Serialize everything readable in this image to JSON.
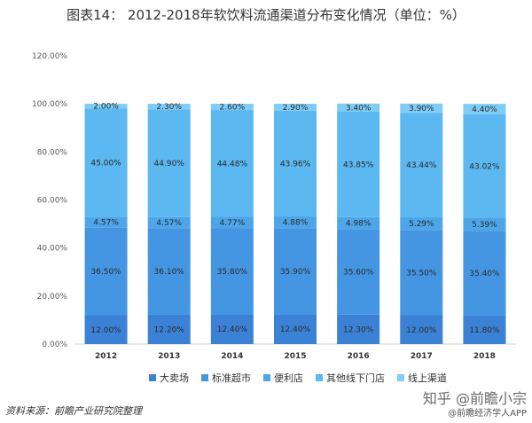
{
  "title": "图表14：  2012-2018年软饮料流通渠道分布变化情况（单位：%）",
  "source": "资料来源：前瞻产业研究院整理",
  "watermark_main": "知乎 @前瞻小宗",
  "watermark_sub": "@前瞻经济学人APP",
  "chart_data": {
    "type": "bar",
    "stacked": true,
    "categories": [
      "2012",
      "2013",
      "2014",
      "2015",
      "2016",
      "2017",
      "2018"
    ],
    "y_ticks": [
      "0.00%",
      "20.00%",
      "40.00%",
      "60.00%",
      "80.00%",
      "100.00%",
      "120.00%"
    ],
    "ylim": [
      0,
      120
    ],
    "grid": false,
    "legend_position": "bottom",
    "series": [
      {
        "name": "大卖场",
        "color": "#3b82d6",
        "values": [
          12.0,
          12.2,
          12.4,
          12.4,
          12.3,
          12.0,
          11.8
        ],
        "labels": [
          "12.00%",
          "12.20%",
          "12.40%",
          "12.40%",
          "12.30%",
          "12.00%",
          "11.80%"
        ]
      },
      {
        "name": "标准超市",
        "color": "#4596e2",
        "values": [
          36.5,
          36.1,
          35.8,
          35.9,
          35.6,
          35.5,
          35.4
        ],
        "labels": [
          "36.50%",
          "36.10%",
          "35.80%",
          "35.90%",
          "35.60%",
          "35.50%",
          "35.40%"
        ]
      },
      {
        "name": "便利店",
        "color": "#4ea6ea",
        "values": [
          4.57,
          4.57,
          4.77,
          4.88,
          4.98,
          5.29,
          5.39
        ],
        "labels": [
          "4.57%",
          "4.57%",
          "4.77%",
          "4.88%",
          "4.98%",
          "5.29%",
          "5.39%"
        ]
      },
      {
        "name": "其他线下门店",
        "color": "#5bb8f0",
        "values": [
          45.0,
          44.9,
          44.48,
          43.96,
          43.85,
          43.44,
          43.02
        ],
        "labels": [
          "45.00%",
          "44.90%",
          "44.48%",
          "43.96%",
          "43.85%",
          "43.44%",
          "43.02%"
        ]
      },
      {
        "name": "线上渠道",
        "color": "#7fcdf6",
        "values": [
          2.0,
          2.3,
          2.6,
          2.9,
          3.4,
          3.9,
          4.4
        ],
        "labels": [
          "2.00%",
          "2.30%",
          "2.60%",
          "2.90%",
          "3.40%",
          "3.90%",
          "4.40%"
        ]
      }
    ]
  }
}
